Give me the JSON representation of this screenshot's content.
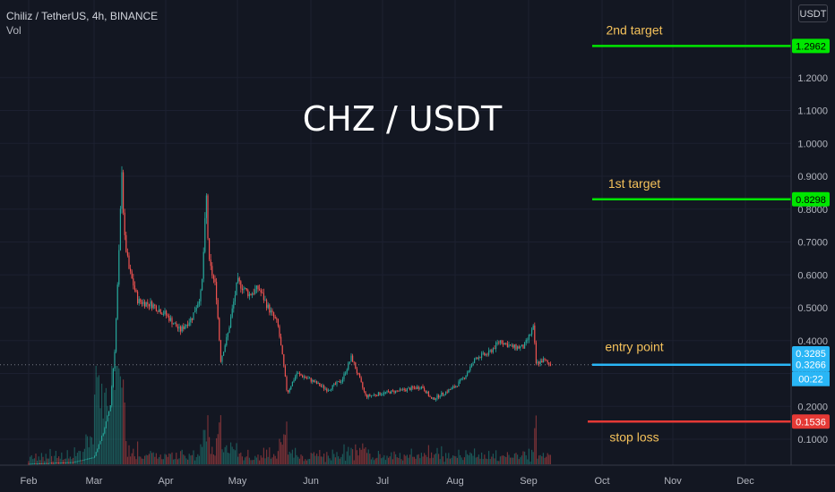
{
  "header": {
    "symbol_line": "Chiliz / TetherUS, 4h, BINANCE",
    "volume_label": "Vol"
  },
  "currency_button": "USDT",
  "colors": {
    "background": "#131722",
    "up": "#26a69a",
    "down": "#ef5350",
    "target_line": "#00e600",
    "entry_line": "#29b6f6",
    "stop_line": "#e53935",
    "annotation_text": "#f5c25b"
  },
  "chart_data": {
    "type": "candlestick",
    "title": "CHZ / USDT",
    "x_tick_labels": [
      "Feb",
      "Mar",
      "Apr",
      "May",
      "Jun",
      "Jul",
      "Aug",
      "Sep",
      "Oct",
      "Nov",
      "Dec"
    ],
    "y_tick_labels": [
      "0.1000",
      "0.2000",
      "0.3000",
      "0.4000",
      "0.5000",
      "0.6000",
      "0.7000",
      "0.8000",
      "0.9000",
      "1.0000",
      "1.1000",
      "1.2000"
    ],
    "ylim": [
      0.0,
      1.3
    ],
    "price_path": [
      {
        "date": "Feb 01",
        "price": 0.025
      },
      {
        "date": "Feb 20",
        "price": 0.03
      },
      {
        "date": "Mar 01",
        "price": 0.045
      },
      {
        "date": "Mar 05",
        "price": 0.12
      },
      {
        "date": "Mar 08",
        "price": 0.2
      },
      {
        "date": "Mar 10",
        "price": 0.38
      },
      {
        "date": "Mar 12",
        "price": 0.7
      },
      {
        "date": "Mar 13",
        "price": 0.93
      },
      {
        "date": "Mar 14",
        "price": 0.72
      },
      {
        "date": "Mar 16",
        "price": 0.62
      },
      {
        "date": "Mar 20",
        "price": 0.52
      },
      {
        "date": "Mar 26",
        "price": 0.51
      },
      {
        "date": "Apr 01",
        "price": 0.48
      },
      {
        "date": "Apr 07",
        "price": 0.43
      },
      {
        "date": "Apr 12",
        "price": 0.47
      },
      {
        "date": "Apr 16",
        "price": 0.55
      },
      {
        "date": "Apr 18",
        "price": 0.84
      },
      {
        "date": "Apr 19",
        "price": 0.64
      },
      {
        "date": "Apr 22",
        "price": 0.56
      },
      {
        "date": "Apr 24",
        "price": 0.34
      },
      {
        "date": "Apr 27",
        "price": 0.42
      },
      {
        "date": "May 01",
        "price": 0.58
      },
      {
        "date": "May 06",
        "price": 0.54
      },
      {
        "date": "May 10",
        "price": 0.56
      },
      {
        "date": "May 14",
        "price": 0.5
      },
      {
        "date": "May 18",
        "price": 0.45
      },
      {
        "date": "May 20",
        "price": 0.35
      },
      {
        "date": "May 22",
        "price": 0.24
      },
      {
        "date": "May 26",
        "price": 0.3
      },
      {
        "date": "Jun 01",
        "price": 0.28
      },
      {
        "date": "Jun 08",
        "price": 0.25
      },
      {
        "date": "Jun 14",
        "price": 0.28
      },
      {
        "date": "Jun 18",
        "price": 0.35
      },
      {
        "date": "Jun 24",
        "price": 0.23
      },
      {
        "date": "Jul 01",
        "price": 0.24
      },
      {
        "date": "Jul 10",
        "price": 0.25
      },
      {
        "date": "Jul 18",
        "price": 0.26
      },
      {
        "date": "Jul 22",
        "price": 0.22
      },
      {
        "date": "Aug 01",
        "price": 0.26
      },
      {
        "date": "Aug 05",
        "price": 0.29
      },
      {
        "date": "Aug 10",
        "price": 0.35
      },
      {
        "date": "Aug 15",
        "price": 0.36
      },
      {
        "date": "Aug 20",
        "price": 0.4
      },
      {
        "date": "Aug 25",
        "price": 0.38
      },
      {
        "date": "Aug 30",
        "price": 0.38
      },
      {
        "date": "Sep 03",
        "price": 0.44
      },
      {
        "date": "Sep 04",
        "price": 0.33
      },
      {
        "date": "Sep 07",
        "price": 0.34
      },
      {
        "date": "Sep 10",
        "price": 0.327
      }
    ],
    "levels": [
      {
        "label": "2nd target",
        "value": 1.2962,
        "price_label": "1.2962",
        "color": "#00e600"
      },
      {
        "label": "1st target",
        "value": 0.8298,
        "price_label": "0.8298",
        "color": "#00e600"
      },
      {
        "label": "entry point",
        "value": 0.3266,
        "price_label": "0.3266",
        "color": "#29b6f6"
      },
      {
        "label": "stop loss",
        "value": 0.1536,
        "price_label": "0.1536",
        "color": "#e53935"
      }
    ],
    "last_price": {
      "value": 0.3285,
      "price_label": "0.3285",
      "countdown": "00:22"
    }
  }
}
